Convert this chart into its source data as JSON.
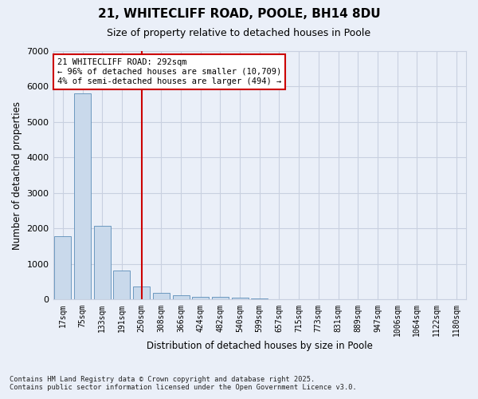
{
  "title_line1": "21, WHITECLIFF ROAD, POOLE, BH14 8DU",
  "title_line2": "Size of property relative to detached houses in Poole",
  "xlabel": "Distribution of detached houses by size in Poole",
  "ylabel": "Number of detached properties",
  "categories": [
    "17sqm",
    "75sqm",
    "133sqm",
    "191sqm",
    "250sqm",
    "308sqm",
    "366sqm",
    "424sqm",
    "482sqm",
    "540sqm",
    "599sqm",
    "657sqm",
    "715sqm",
    "773sqm",
    "831sqm",
    "889sqm",
    "947sqm",
    "1006sqm",
    "1064sqm",
    "1122sqm",
    "1180sqm"
  ],
  "values": [
    1780,
    5820,
    2080,
    820,
    370,
    200,
    125,
    85,
    70,
    55,
    35,
    15,
    10,
    5,
    3,
    2,
    1,
    1,
    0,
    0,
    0
  ],
  "bar_color": "#c9d9eb",
  "bar_edge_color": "#5b8db8",
  "annotation_text_line1": "21 WHITECLIFF ROAD: 292sqm",
  "annotation_text_line2": "← 96% of detached houses are smaller (10,709)",
  "annotation_text_line3": "4% of semi-detached houses are larger (494) →",
  "annotation_box_facecolor": "#ffffff",
  "annotation_box_edgecolor": "#cc0000",
  "vline_color": "#cc0000",
  "vline_x_index": 4.5,
  "ylim": [
    0,
    7000
  ],
  "yticks": [
    0,
    1000,
    2000,
    3000,
    4000,
    5000,
    6000,
    7000
  ],
  "grid_color": "#c8d0e0",
  "bg_color": "#eaeff8",
  "title_fontsize": 11,
  "subtitle_fontsize": 9,
  "footnote_line1": "Contains HM Land Registry data © Crown copyright and database right 2025.",
  "footnote_line2": "Contains public sector information licensed under the Open Government Licence v3.0."
}
